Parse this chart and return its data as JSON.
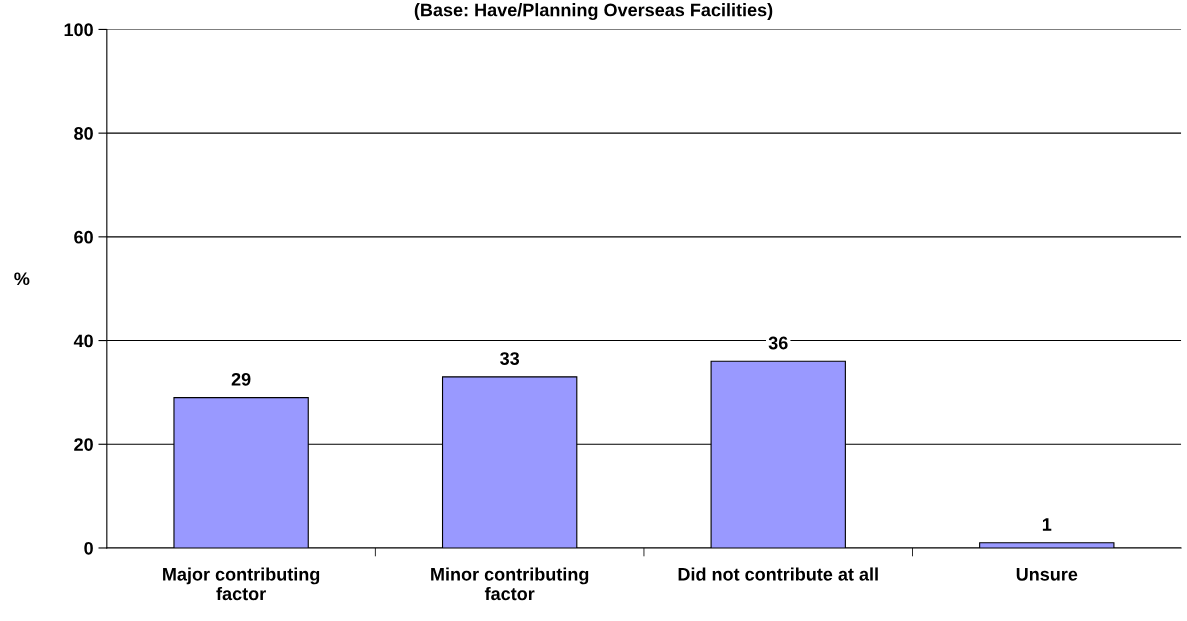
{
  "chart_data": {
    "type": "bar",
    "title": "(Base: Have/Planning Overseas Facilities)",
    "ylabel": "%",
    "categories": [
      "Major contributing\nfactor",
      "Minor contributing\nfactor",
      "Did not contribute at all",
      "Unsure"
    ],
    "values": [
      29,
      33,
      36,
      1
    ],
    "color": "#9999ff",
    "ylim": [
      0,
      100
    ],
    "yticks": [
      0,
      20,
      40,
      60,
      80,
      100
    ],
    "grid": "y",
    "data_labels": true
  }
}
